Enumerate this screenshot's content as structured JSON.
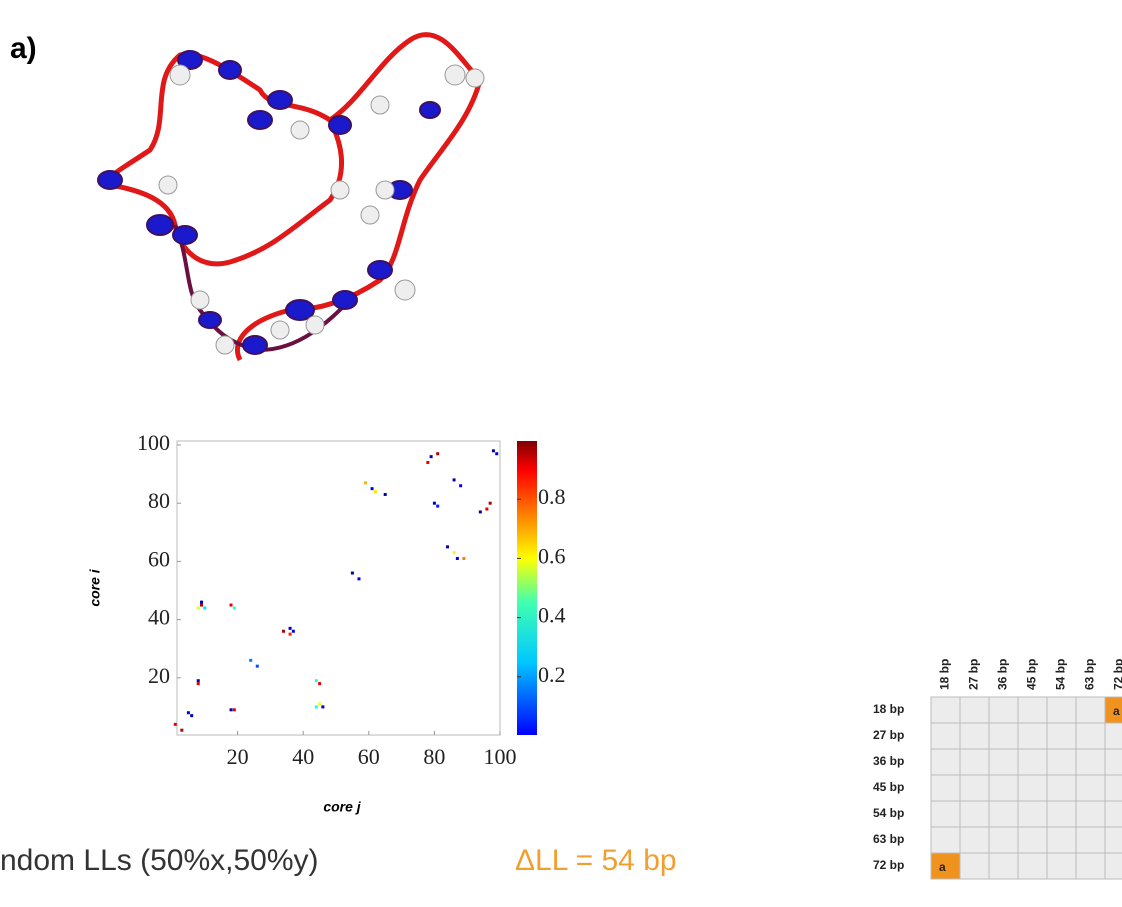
{
  "panel_label": "a)",
  "chart_data": {
    "type": "scatter",
    "xlabel": "core j",
    "ylabel": "core i",
    "x": [
      1,
      3,
      5,
      6,
      8,
      8,
      9,
      9,
      8,
      10,
      18,
      19,
      18,
      19,
      24,
      26,
      34,
      36,
      36,
      37,
      44,
      45,
      44,
      45,
      46,
      55,
      57,
      59,
      61,
      62,
      65,
      78,
      79,
      81,
      80,
      81,
      84,
      86,
      87,
      89,
      86,
      88,
      94,
      96,
      97,
      98,
      99
    ],
    "y": [
      4,
      2,
      8,
      7,
      19,
      18,
      46,
      45,
      44,
      44,
      45,
      44,
      9,
      9,
      26,
      24,
      36,
      37,
      35,
      36,
      19,
      18,
      10,
      11,
      10,
      56,
      54,
      87,
      85,
      84,
      83,
      94,
      96,
      97,
      80,
      79,
      65,
      63,
      61,
      61,
      88,
      86,
      77,
      78,
      80,
      98,
      97
    ],
    "values": [
      0.9,
      0.95,
      0.1,
      0.05,
      0.05,
      0.9,
      0.05,
      0.95,
      0.6,
      0.35,
      0.9,
      0.4,
      0.05,
      0.9,
      0.25,
      0.2,
      0.95,
      0.05,
      0.85,
      0.1,
      0.4,
      0.9,
      0.4,
      0.6,
      0.05,
      0.05,
      0.1,
      0.7,
      0.1,
      0.65,
      0.05,
      0.9,
      0.05,
      0.95,
      0.05,
      0.15,
      0.05,
      0.6,
      0.1,
      0.75,
      0.05,
      0.1,
      0.05,
      0.9,
      0.95,
      0.05,
      0.1
    ],
    "xlim": [
      0,
      100
    ],
    "ylim": [
      0,
      100
    ],
    "xticks": [
      20,
      40,
      60,
      80,
      100
    ],
    "yticks": [
      20,
      40,
      60,
      80,
      100
    ],
    "colorbar": {
      "lim": [
        0,
        1
      ],
      "ticks": [
        0.2,
        0.4,
        0.6,
        0.8
      ]
    }
  },
  "caption": {
    "text": "ndom LLs (50%x,50%y)",
    "delta": "ΔLL = 54 bp"
  },
  "table": {
    "columns": [
      "18 bp",
      "27 bp",
      "36 bp",
      "45 bp",
      "54 bp",
      "63 bp",
      "72 bp"
    ],
    "rows": [
      {
        "label": "18 bp",
        "cells": [
          null,
          null,
          null,
          null,
          null,
          null,
          "a"
        ]
      },
      {
        "label": "27 bp",
        "cells": [
          null,
          null,
          null,
          null,
          null,
          null,
          null
        ]
      },
      {
        "label": "36 bp",
        "cells": [
          null,
          null,
          null,
          null,
          null,
          null,
          null
        ]
      },
      {
        "label": "45 bp",
        "cells": [
          null,
          null,
          null,
          null,
          null,
          null,
          null
        ]
      },
      {
        "label": "54 bp",
        "cells": [
          null,
          null,
          null,
          null,
          null,
          null,
          null
        ]
      },
      {
        "label": "63 bp",
        "cells": [
          null,
          null,
          null,
          null,
          null,
          null,
          null
        ]
      },
      {
        "label": "72 bp",
        "cells": [
          "a",
          null,
          null,
          null,
          null,
          null,
          null
        ]
      }
    ]
  }
}
